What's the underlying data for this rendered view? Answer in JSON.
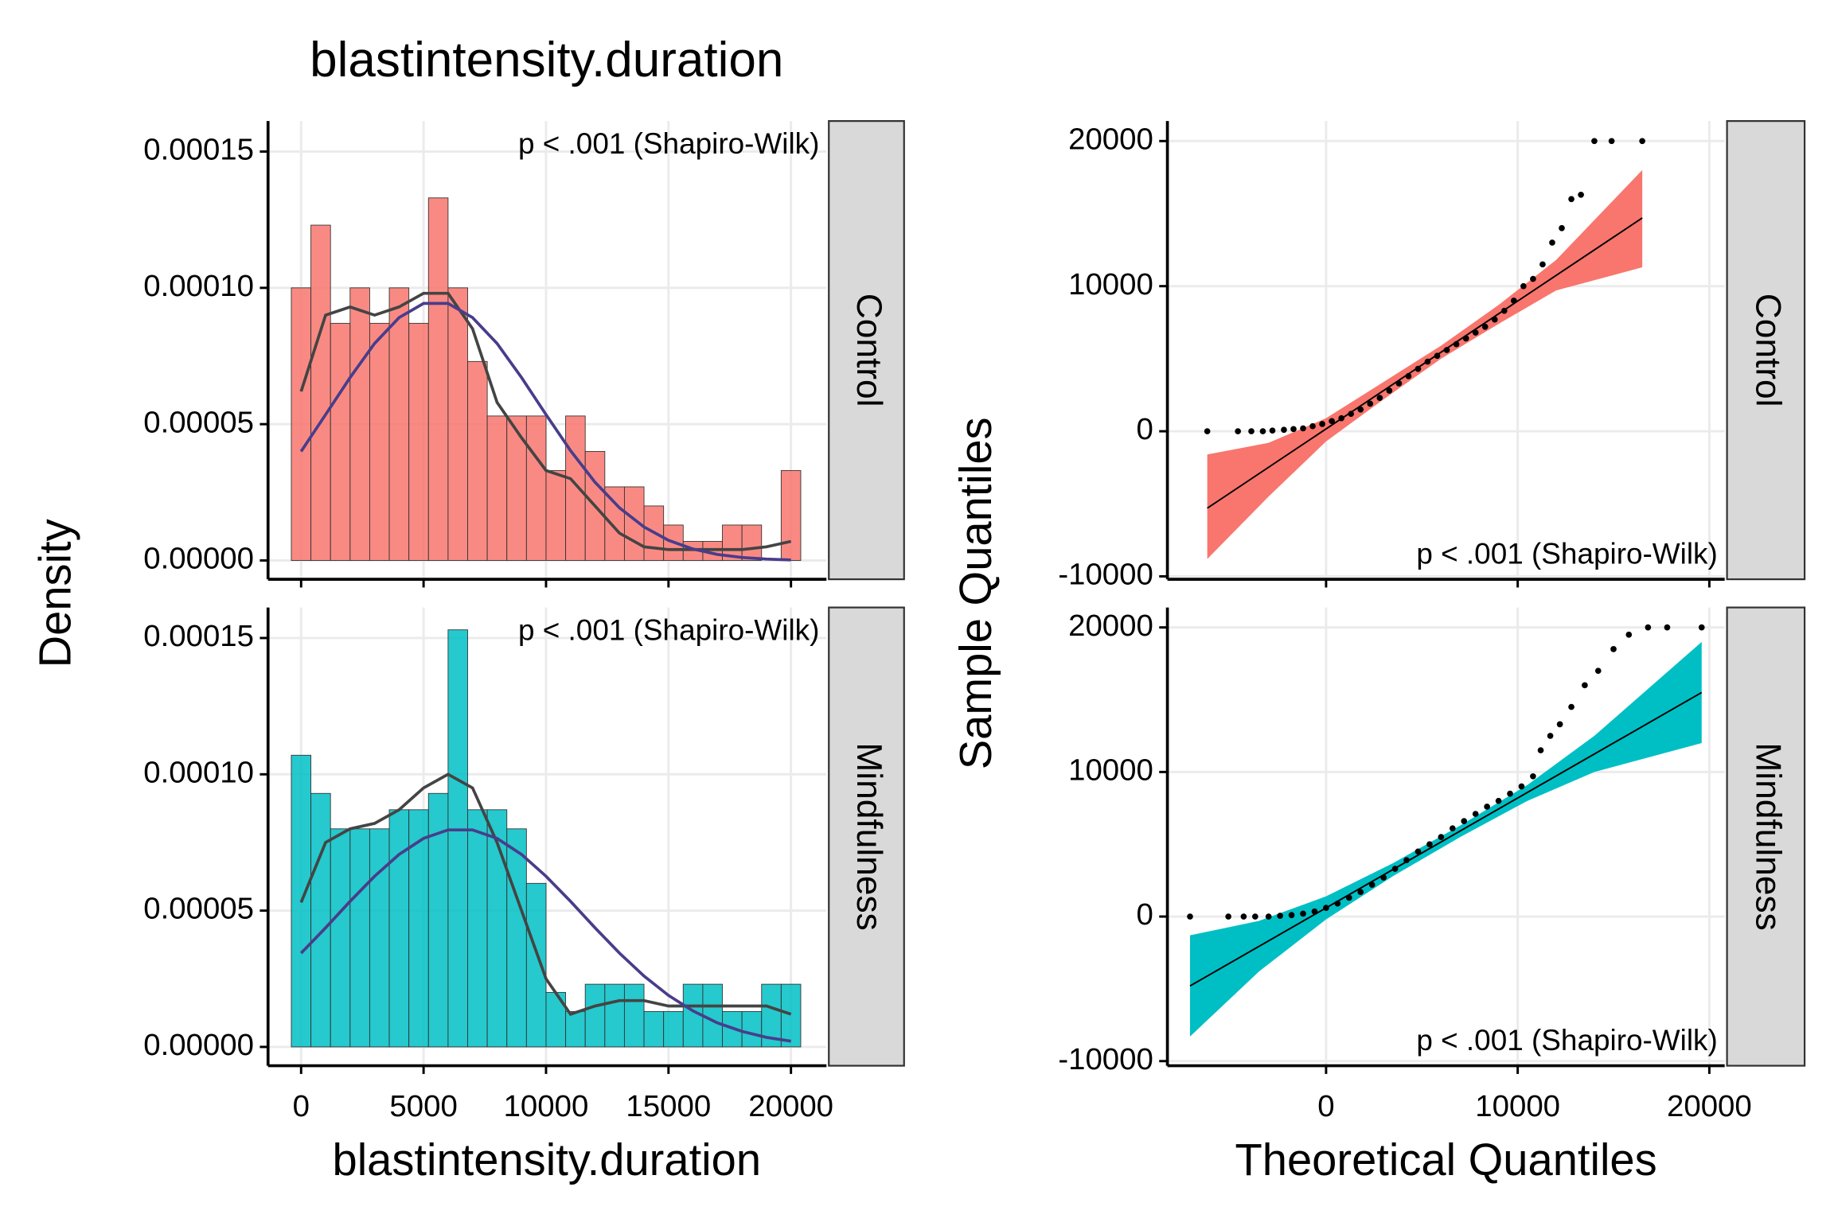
{
  "chart_data": [
    {
      "type": "histogram",
      "title": "blastintensity.duration",
      "ylabel": "Density",
      "facet": "Control",
      "annotation": "p < .001 (Shapiro-Wilk)",
      "color": "#f8766d",
      "density_color": "#444444",
      "normal_color": "#483d8b",
      "grid": true,
      "xlim": [
        -1350,
        21450
      ],
      "ylim": [
        -6.9e-06,
        0.0001612
      ],
      "yticks": [
        {
          "value": 0,
          "label": "0.00000"
        },
        5e-05,
        {
          "value": 0.0001,
          "label": "0.00010"
        },
        0.00015
      ],
      "bins": [
        -400,
        400,
        1200,
        2000,
        2800,
        3600,
        4400,
        5200,
        6000,
        6800,
        7600,
        8400,
        9200,
        10000,
        10800,
        11600,
        12400,
        13200,
        14000,
        14800,
        15600,
        16400,
        17200,
        18000,
        18800,
        19600,
        20400
      ],
      "values": [
        0.0001,
        0.000123,
        8.7e-05,
        0.0001,
        8.7e-05,
        0.0001,
        8.7e-05,
        0.000133,
        0.0001,
        7.3e-05,
        5.3e-05,
        5.3e-05,
        5.3e-05,
        3.3e-05,
        5.3e-05,
        4e-05,
        2.7e-05,
        2.7e-05,
        2e-05,
        1.3e-05,
        7e-06,
        7e-06,
        1.3e-05,
        1.3e-05,
        0,
        3.3e-05
      ],
      "curve_x": [
        0,
        1000,
        2000,
        3000,
        4000,
        5000,
        6000,
        7000,
        8000,
        9000,
        10000,
        11000,
        12000,
        13000,
        14000,
        15000,
        16000,
        17000,
        18000,
        19000,
        20000
      ],
      "density": [
        6.2e-05,
        9e-05,
        9.3e-05,
        9e-05,
        9.3e-05,
        9.8e-05,
        9.8e-05,
        8.5e-05,
        5.8e-05,
        4.5e-05,
        3.3e-05,
        3e-05,
        2e-05,
        1e-05,
        5e-06,
        4e-06,
        4e-06,
        4e-06,
        4e-06,
        5e-06,
        7e-06
      ],
      "normal": [
        4e-05,
        5.35e-05,
        6.71e-05,
        7.96e-05,
        8.91e-05,
        9.43e-05,
        9.43e-05,
        8.91e-05,
        7.96e-05,
        6.71e-05,
        5.35e-05,
        4.03e-05,
        2.87e-05,
        1.93e-05,
        1.23e-05,
        7.4e-06,
        4.2e-06,
        2.2e-06,
        1.1e-06,
        5e-07,
        2e-07
      ]
    },
    {
      "type": "histogram",
      "xlabel": "blastintensity.duration",
      "facet": "Mindfulness",
      "annotation": "p < .001 (Shapiro-Wilk)",
      "color": "#00bfc4",
      "density_color": "#444444",
      "normal_color": "#483d8b",
      "grid": true,
      "xlim": [
        -1350,
        21450
      ],
      "ylim": [
        -6.9e-06,
        0.0001612
      ],
      "xticks": [
        0,
        5000,
        10000,
        15000,
        20000
      ],
      "yticks": [
        {
          "value": 0,
          "label": "0.00000"
        },
        5e-05,
        {
          "value": 0.0001,
          "label": "0.00010"
        },
        0.00015
      ],
      "bins": [
        -400,
        400,
        1200,
        2000,
        2800,
        3600,
        4400,
        5200,
        6000,
        6800,
        7600,
        8400,
        9200,
        10000,
        10800,
        11600,
        12400,
        13200,
        14000,
        14800,
        15600,
        16400,
        17200,
        18000,
        18800,
        19600,
        20400
      ],
      "values": [
        0.000107,
        9.3e-05,
        8e-05,
        8e-05,
        8e-05,
        8.7e-05,
        8.7e-05,
        9.3e-05,
        0.000153,
        8.7e-05,
        8.7e-05,
        8e-05,
        6e-05,
        2e-05,
        1.3e-05,
        2.3e-05,
        2.3e-05,
        2.3e-05,
        1.3e-05,
        1.3e-05,
        2.3e-05,
        2.3e-05,
        1.3e-05,
        1.3e-05,
        2.3e-05,
        2.3e-05
      ],
      "curve_x": [
        0,
        1000,
        2000,
        3000,
        4000,
        5000,
        6000,
        7000,
        8000,
        9000,
        10000,
        11000,
        12000,
        13000,
        14000,
        15000,
        16000,
        17000,
        18000,
        19000,
        20000
      ],
      "density": [
        5.3e-05,
        7.5e-05,
        8e-05,
        8.2e-05,
        8.7e-05,
        9.5e-05,
        0.0001,
        9.5e-05,
        7.5e-05,
        5e-05,
        2.5e-05,
        1.2e-05,
        1.5e-05,
        1.7e-05,
        1.7e-05,
        1.5e-05,
        1.5e-05,
        1.5e-05,
        1.5e-05,
        1.5e-05,
        1.2e-05
      ],
      "normal": [
        3.44e-05,
        4.37e-05,
        5.34e-05,
        6.26e-05,
        7.06e-05,
        7.65e-05,
        7.96e-05,
        7.96e-05,
        7.65e-05,
        7.06e-05,
        6.26e-05,
        5.34e-05,
        4.37e-05,
        3.44e-05,
        2.6e-05,
        1.89e-05,
        1.32e-05,
        8.8e-06,
        5.7e-06,
        3.5e-06,
        2.1e-06
      ]
    },
    {
      "type": "qq",
      "ylabel": "Sample Quantiles",
      "facet": "Control",
      "annotation": "p < .001 (Shapiro-Wilk)",
      "color": "#f8766d",
      "grid": true,
      "xlim": [
        -8280,
        20800
      ],
      "ylim": [
        -10200,
        21380
      ],
      "yticks": [
        -10000,
        0,
        10000,
        20000
      ],
      "x": [
        -6200,
        -4600,
        -3900,
        -3300,
        -2800,
        -2200,
        -1700,
        -1200,
        -700,
        -200,
        300,
        800,
        1300,
        1800,
        2300,
        2800,
        3300,
        3800,
        4300,
        4800,
        5300,
        5800,
        6300,
        6800,
        7300,
        7800,
        8300,
        8800,
        9300,
        9800,
        10300,
        10800,
        11300,
        11800,
        12300,
        12800,
        13300,
        14000,
        14900,
        16500
      ],
      "y": [
        0,
        0,
        0,
        0,
        50,
        100,
        150,
        200,
        350,
        500,
        700,
        900,
        1200,
        1500,
        1900,
        2300,
        2800,
        3300,
        3800,
        4300,
        4800,
        5200,
        5600,
        6000,
        6400,
        6800,
        7200,
        7700,
        8300,
        9000,
        10000,
        10500,
        11500,
        13000,
        14000,
        16000,
        16300,
        20000,
        20000,
        20000
      ],
      "line_x": [
        -6200,
        16500
      ],
      "line_y": [
        -5300,
        14700
      ],
      "band_x": [
        -6200,
        -3000,
        0,
        3000,
        6000,
        9000,
        12000,
        16500
      ],
      "band_lower": [
        -8800,
        -4500,
        -700,
        2200,
        5000,
        7400,
        9700,
        11300
      ],
      "band_upper": [
        -1600,
        -800,
        900,
        3400,
        5900,
        8700,
        11800,
        18000
      ]
    },
    {
      "type": "qq",
      "xlabel": "Theoretical Quantiles",
      "facet": "Mindfulness",
      "annotation": "p < .001 (Shapiro-Wilk)",
      "color": "#00bfc4",
      "grid": true,
      "xlim": [
        -8280,
        20800
      ],
      "ylim": [
        -10320,
        21380
      ],
      "xticks": [
        0,
        10000,
        20000
      ],
      "yticks": [
        -10000,
        0,
        10000,
        20000
      ],
      "x": [
        -7100,
        -5100,
        -4300,
        -3700,
        -3000,
        -2400,
        -1800,
        -1200,
        -600,
        0,
        600,
        1200,
        1800,
        2400,
        3000,
        3600,
        4200,
        4800,
        5400,
        6000,
        6600,
        7200,
        7800,
        8400,
        9000,
        9600,
        10200,
        10800,
        11200,
        11700,
        12200,
        12800,
        13500,
        14200,
        15000,
        15800,
        16800,
        17800,
        19600
      ],
      "y": [
        0,
        0,
        0,
        0,
        0,
        50,
        100,
        200,
        350,
        600,
        900,
        1300,
        1700,
        2200,
        2700,
        3300,
        3900,
        4500,
        5000,
        5500,
        6100,
        6600,
        7100,
        7600,
        8000,
        8500,
        9000,
        9700,
        11500,
        12500,
        13300,
        14500,
        16000,
        17000,
        18500,
        19500,
        20000,
        20000,
        20000
      ],
      "line_x": [
        -7100,
        19600
      ],
      "line_y": [
        -4800,
        15500
      ],
      "band_x": [
        -7100,
        -3500,
        0,
        3500,
        7000,
        10500,
        14000,
        19600
      ],
      "band_lower": [
        -8300,
        -3800,
        -200,
        2800,
        5500,
        8000,
        10000,
        12000
      ],
      "band_upper": [
        -1300,
        -300,
        1400,
        3700,
        6300,
        9100,
        12500,
        19000
      ]
    }
  ]
}
